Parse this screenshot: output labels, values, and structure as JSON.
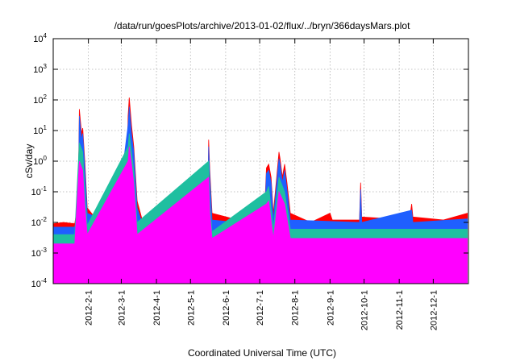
{
  "chart_data": {
    "type": "area",
    "title": "/data/run/goesPlots/archive/2013-01-02/flux/../bryn/366daysMars.plot",
    "xlabel": "Coordinated Universal Time (UTC)",
    "ylabel": "cSv/day",
    "y_scale": "log",
    "ylim": [
      0.0001,
      10000
    ],
    "y_ticks": [
      {
        "base": "10",
        "exp": "-4"
      },
      {
        "base": "10",
        "exp": "-3"
      },
      {
        "base": "10",
        "exp": "-2"
      },
      {
        "base": "10",
        "exp": "-1"
      },
      {
        "base": "10",
        "exp": "0"
      },
      {
        "base": "10",
        "exp": "1"
      },
      {
        "base": "10",
        "exp": "2"
      },
      {
        "base": "10",
        "exp": "3"
      },
      {
        "base": "10",
        "exp": "4"
      }
    ],
    "xlim": [
      "2012-01-01",
      "2013-01-01"
    ],
    "x_ticks": [
      "2012-2-1",
      "2012-3-1",
      "2012-4-1",
      "2012-5-1",
      "2012-6-1",
      "2012-7-1",
      "2012-8-1",
      "2012-9-1",
      "2012-10-1",
      "2012-11-1",
      "2012-12-1"
    ],
    "grid": true,
    "series": [
      {
        "color": "#ff0000",
        "values": [
          [
            "2012-01-01",
            0.009
          ],
          [
            "2012-01-10",
            0.01
          ],
          [
            "2012-01-20",
            0.009
          ],
          [
            "2012-01-23",
            0.05
          ],
          [
            "2012-01-24",
            50
          ],
          [
            "2012-01-26",
            8
          ],
          [
            "2012-01-27",
            12
          ],
          [
            "2012-01-29",
            0.8
          ],
          [
            "2012-01-31",
            0.03
          ],
          [
            "2012-02-10",
            0.01
          ],
          [
            "2012-02-25",
            0.01
          ],
          [
            "2012-03-05",
            0.012
          ],
          [
            "2012-03-07",
            30
          ],
          [
            "2012-03-08",
            120
          ],
          [
            "2012-03-10",
            15
          ],
          [
            "2012-03-12",
            3
          ],
          [
            "2012-03-15",
            0.05
          ],
          [
            "2012-03-20",
            0.01
          ],
          [
            "2012-04-10",
            0.01
          ],
          [
            "2012-05-10",
            0.01
          ],
          [
            "2012-05-16",
            0.02
          ],
          [
            "2012-05-17",
            5
          ],
          [
            "2012-05-18",
            0.5
          ],
          [
            "2012-05-20",
            0.02
          ],
          [
            "2012-06-20",
            0.01
          ],
          [
            "2012-07-05",
            0.012
          ],
          [
            "2012-07-07",
            0.6
          ],
          [
            "2012-07-09",
            0.8
          ],
          [
            "2012-07-11",
            0.3
          ],
          [
            "2012-07-13",
            0.02
          ],
          [
            "2012-07-16",
            0.3
          ],
          [
            "2012-07-18",
            2
          ],
          [
            "2012-07-19",
            1.2
          ],
          [
            "2012-07-21",
            0.3
          ],
          [
            "2012-07-23",
            0.8
          ],
          [
            "2012-07-25",
            0.2
          ],
          [
            "2012-07-28",
            0.02
          ],
          [
            "2012-08-15",
            0.01
          ],
          [
            "2012-09-01",
            0.02
          ],
          [
            "2012-09-03",
            0.012
          ],
          [
            "2012-09-27",
            0.012
          ],
          [
            "2012-09-28",
            0.2
          ],
          [
            "2012-09-29",
            0.015
          ],
          [
            "2012-11-10",
            0.012
          ],
          [
            "2012-11-12",
            0.04
          ],
          [
            "2012-11-13",
            0.015
          ],
          [
            "2012-12-10",
            0.012
          ],
          [
            "2012-12-31",
            0.02
          ]
        ]
      },
      {
        "color": "#1f5fff",
        "values": [
          [
            "2012-01-01",
            0.007
          ],
          [
            "2012-01-20",
            0.007
          ],
          [
            "2012-01-23",
            0.03
          ],
          [
            "2012-01-24",
            30
          ],
          [
            "2012-01-26",
            5
          ],
          [
            "2012-01-27",
            8
          ],
          [
            "2012-01-29",
            0.5
          ],
          [
            "2012-01-31",
            0.02
          ],
          [
            "2012-02-25",
            0.008
          ],
          [
            "2012-03-07",
            15
          ],
          [
            "2012-03-08",
            60
          ],
          [
            "2012-03-10",
            8
          ],
          [
            "2012-03-12",
            2
          ],
          [
            "2012-03-15",
            0.03
          ],
          [
            "2012-03-20",
            0.008
          ],
          [
            "2012-05-16",
            0.015
          ],
          [
            "2012-05-17",
            3
          ],
          [
            "2012-05-18",
            0.3
          ],
          [
            "2012-05-20",
            0.012
          ],
          [
            "2012-07-05",
            0.008
          ],
          [
            "2012-07-07",
            0.4
          ],
          [
            "2012-07-09",
            0.5
          ],
          [
            "2012-07-11",
            0.2
          ],
          [
            "2012-07-13",
            0.012
          ],
          [
            "2012-07-16",
            0.2
          ],
          [
            "2012-07-18",
            1.2
          ],
          [
            "2012-07-19",
            0.8
          ],
          [
            "2012-07-21",
            0.2
          ],
          [
            "2012-07-23",
            0.5
          ],
          [
            "2012-07-25",
            0.12
          ],
          [
            "2012-07-28",
            0.012
          ],
          [
            "2012-09-27",
            0.01
          ],
          [
            "2012-09-28",
            0.12
          ],
          [
            "2012-09-29",
            0.01
          ],
          [
            "2012-11-12",
            0.025
          ],
          [
            "2012-11-13",
            0.01
          ],
          [
            "2012-12-31",
            0.013
          ]
        ]
      },
      {
        "color": "#1fbfa0",
        "values": [
          [
            "2012-01-01",
            0.004
          ],
          [
            "2012-01-20",
            0.004
          ],
          [
            "2012-01-24",
            4
          ],
          [
            "2012-01-27",
            2
          ],
          [
            "2012-01-29",
            0.1
          ],
          [
            "2012-01-31",
            0.008
          ],
          [
            "2012-03-07",
            3
          ],
          [
            "2012-03-08",
            8
          ],
          [
            "2012-03-10",
            2
          ],
          [
            "2012-03-12",
            0.5
          ],
          [
            "2012-03-15",
            0.01
          ],
          [
            "2012-05-17",
            1
          ],
          [
            "2012-05-18",
            0.05
          ],
          [
            "2012-05-20",
            0.005
          ],
          [
            "2012-07-07",
            0.1
          ],
          [
            "2012-07-09",
            0.15
          ],
          [
            "2012-07-13",
            0.006
          ],
          [
            "2012-07-18",
            0.3
          ],
          [
            "2012-07-23",
            0.1
          ],
          [
            "2012-07-28",
            0.006
          ],
          [
            "2012-12-31",
            0.006
          ]
        ]
      },
      {
        "color": "#ff00ff",
        "values": [
          [
            "2012-01-01",
            0.002
          ],
          [
            "2012-01-20",
            0.002
          ],
          [
            "2012-01-24",
            1
          ],
          [
            "2012-01-27",
            0.5
          ],
          [
            "2012-01-29",
            0.03
          ],
          [
            "2012-01-31",
            0.004
          ],
          [
            "2012-03-07",
            1
          ],
          [
            "2012-03-08",
            3
          ],
          [
            "2012-03-10",
            0.8
          ],
          [
            "2012-03-12",
            0.2
          ],
          [
            "2012-03-15",
            0.004
          ],
          [
            "2012-05-17",
            0.3
          ],
          [
            "2012-05-18",
            0.02
          ],
          [
            "2012-05-20",
            0.003
          ],
          [
            "2012-07-07",
            0.04
          ],
          [
            "2012-07-09",
            0.05
          ],
          [
            "2012-07-13",
            0.003
          ],
          [
            "2012-07-18",
            0.1
          ],
          [
            "2012-07-23",
            0.04
          ],
          [
            "2012-07-28",
            0.003
          ],
          [
            "2012-12-31",
            0.003
          ]
        ]
      }
    ]
  }
}
